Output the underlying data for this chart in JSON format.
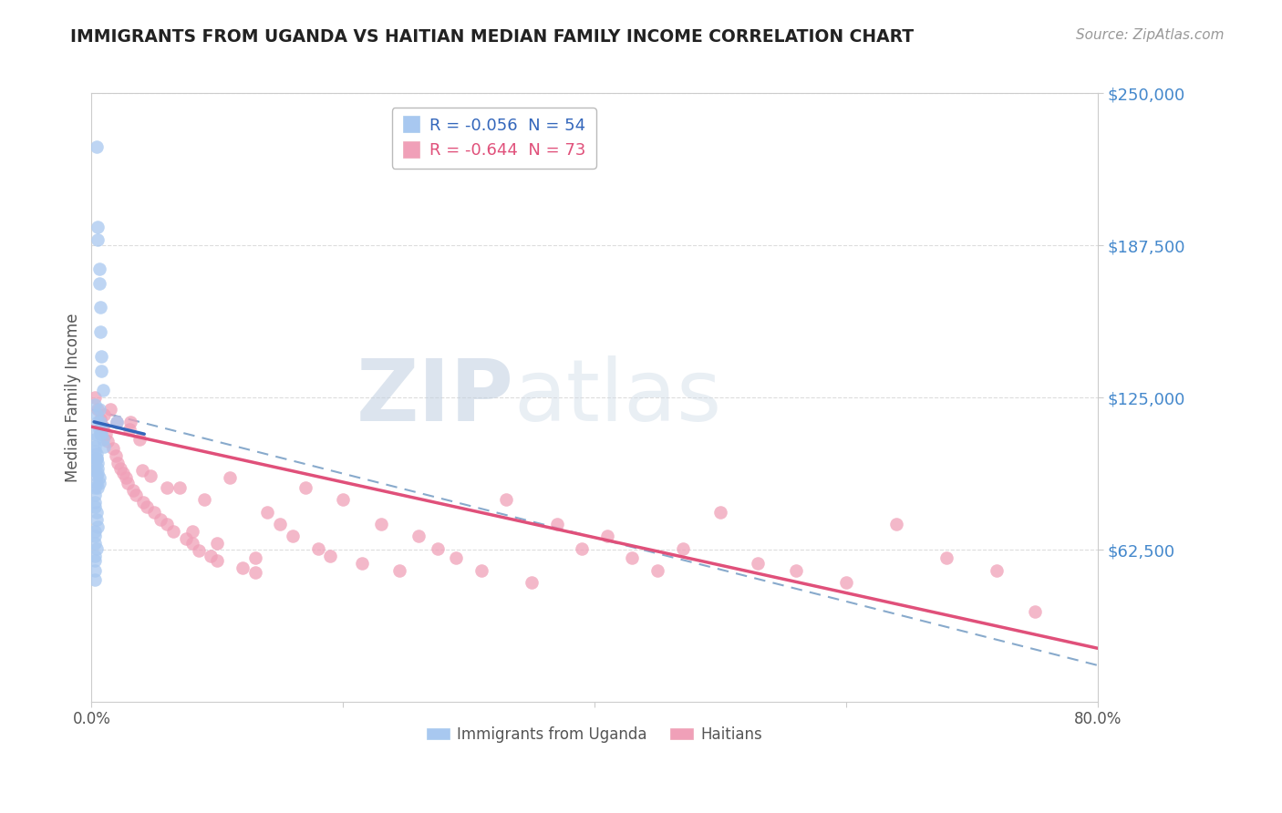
{
  "title": "IMMIGRANTS FROM UGANDA VS HAITIAN MEDIAN FAMILY INCOME CORRELATION CHART",
  "source_text": "Source: ZipAtlas.com",
  "ylabel": "Median Family Income",
  "xlim": [
    0.0,
    0.8
  ],
  "ylim": [
    0,
    250000
  ],
  "yticks": [
    62500,
    125000,
    187500,
    250000
  ],
  "ytick_labels": [
    "$62,500",
    "$125,000",
    "$187,500",
    "$250,000"
  ],
  "xticks": [
    0.0,
    0.2,
    0.4,
    0.6,
    0.8
  ],
  "xtick_labels": [
    "0.0%",
    "",
    "",
    "",
    "80.0%"
  ],
  "uganda_color": "#a8c8f0",
  "haiti_color": "#f0a0b8",
  "uganda_line_color": "#3366bb",
  "haiti_line_color": "#e0507a",
  "dashed_line_color": "#88aacc",
  "uganda_R": -0.056,
  "uganda_N": 54,
  "haiti_R": -0.644,
  "haiti_N": 73,
  "legend_label_uganda": "Immigrants from Uganda",
  "legend_label_haiti": "Haitians",
  "watermark_zip": "ZIP",
  "watermark_atlas": "atlas",
  "title_color": "#222222",
  "axis_label_color": "#555555",
  "ytick_color": "#4488cc",
  "grid_color": "#dddddd",
  "uganda_line_x0": 0.002,
  "uganda_line_x1": 0.042,
  "uganda_line_y0": 115000,
  "uganda_line_y1": 110000,
  "haiti_line_x0": 0.0,
  "haiti_line_x1": 0.8,
  "haiti_line_y0": 113000,
  "haiti_line_y1": 22000,
  "dash_line_x0": 0.0,
  "dash_line_x1": 0.8,
  "dash_line_y0": 120000,
  "dash_line_y1": 15000,
  "uganda_scatter_x": [
    0.004,
    0.005,
    0.005,
    0.006,
    0.006,
    0.007,
    0.007,
    0.008,
    0.008,
    0.009,
    0.003,
    0.004,
    0.005,
    0.006,
    0.007,
    0.008,
    0.009,
    0.01,
    0.003,
    0.004,
    0.003,
    0.003,
    0.004,
    0.004,
    0.005,
    0.006,
    0.007,
    0.008,
    0.003,
    0.003,
    0.003,
    0.004,
    0.004,
    0.005,
    0.005,
    0.005,
    0.006,
    0.006,
    0.003,
    0.003,
    0.003,
    0.003,
    0.004,
    0.004,
    0.005,
    0.003,
    0.003,
    0.003,
    0.004,
    0.003,
    0.003,
    0.02,
    0.003,
    0.003
  ],
  "uganda_scatter_y": [
    228000,
    195000,
    190000,
    178000,
    172000,
    162000,
    152000,
    142000,
    136000,
    128000,
    122000,
    118000,
    115000,
    112000,
    110000,
    110000,
    108000,
    105000,
    103000,
    100000,
    98000,
    95000,
    93000,
    90000,
    88000,
    120000,
    115000,
    112000,
    110000,
    108000,
    105000,
    102000,
    100000,
    98000,
    96000,
    94000,
    92000,
    90000,
    88000,
    85000,
    82000,
    80000,
    78000,
    75000,
    72000,
    70000,
    68000,
    65000,
    63000,
    60000,
    58000,
    115000,
    54000,
    50000
  ],
  "haiti_scatter_x": [
    0.003,
    0.005,
    0.007,
    0.009,
    0.011,
    0.013,
    0.015,
    0.017,
    0.019,
    0.021,
    0.023,
    0.025,
    0.027,
    0.029,
    0.031,
    0.033,
    0.035,
    0.038,
    0.041,
    0.044,
    0.047,
    0.05,
    0.055,
    0.06,
    0.065,
    0.07,
    0.075,
    0.08,
    0.085,
    0.09,
    0.095,
    0.1,
    0.11,
    0.12,
    0.13,
    0.14,
    0.15,
    0.16,
    0.17,
    0.18,
    0.19,
    0.2,
    0.215,
    0.23,
    0.245,
    0.26,
    0.275,
    0.29,
    0.31,
    0.33,
    0.35,
    0.37,
    0.39,
    0.41,
    0.43,
    0.45,
    0.47,
    0.5,
    0.53,
    0.56,
    0.6,
    0.64,
    0.68,
    0.72,
    0.01,
    0.02,
    0.03,
    0.04,
    0.06,
    0.08,
    0.1,
    0.13,
    0.75
  ],
  "haiti_scatter_y": [
    125000,
    120000,
    116000,
    113000,
    110000,
    107000,
    120000,
    104000,
    101000,
    98000,
    96000,
    94000,
    92000,
    90000,
    115000,
    87000,
    85000,
    108000,
    82000,
    80000,
    93000,
    78000,
    75000,
    73000,
    70000,
    88000,
    67000,
    65000,
    62000,
    83000,
    60000,
    58000,
    92000,
    55000,
    53000,
    78000,
    73000,
    68000,
    88000,
    63000,
    60000,
    83000,
    57000,
    73000,
    54000,
    68000,
    63000,
    59000,
    54000,
    83000,
    49000,
    73000,
    63000,
    68000,
    59000,
    54000,
    63000,
    78000,
    57000,
    54000,
    49000,
    73000,
    59000,
    54000,
    118000,
    115000,
    112000,
    95000,
    88000,
    70000,
    65000,
    59000,
    37000
  ]
}
